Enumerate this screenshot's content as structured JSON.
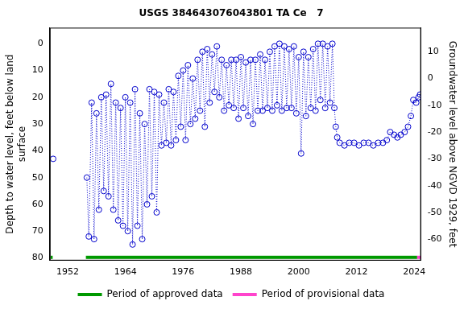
{
  "chart_data": {
    "type": "scatter",
    "title": "USGS 384643076043801 TA Ce   7",
    "y_label": [
      "Depth to water level, feet below land",
      "surface"
    ],
    "y2_label": "Groundwater level above NGVD 1929, feet",
    "xlim": [
      1948.3,
      2025.4
    ],
    "xticks": [
      1952,
      1964,
      1976,
      1988,
      2000,
      2012,
      2024
    ],
    "ylim": [
      81,
      -6
    ],
    "yticks": [
      0,
      10,
      20,
      30,
      40,
      50,
      60,
      70,
      80
    ],
    "y2lim": [
      -68,
      19
    ],
    "y2ticks": [
      10,
      0,
      -10,
      -20,
      -30,
      -40,
      -50,
      -60
    ],
    "grid": false,
    "legend": "bottom",
    "series": [
      {
        "color": "#0000cc",
        "marker": "circle",
        "line_style": "dotted",
        "x": [
          1949.0,
          null,
          1956.0,
          1956.4,
          1957.0,
          1957.5,
          1958.0,
          1958.5,
          1959.0,
          1959.5,
          1960.0,
          1960.5,
          1961.0,
          1961.5,
          1962.0,
          1962.5,
          1963.0,
          1963.5,
          1964.0,
          1964.5,
          1965.0,
          1965.5,
          1966.0,
          1966.5,
          1967.0,
          1967.5,
          1968.0,
          1968.5,
          1969.0,
          1969.5,
          1970.0,
          1970.5,
          1971.0,
          1971.5,
          1972.0,
          1972.5,
          1973.0,
          1973.5,
          1974.0,
          1974.5,
          1975.0,
          1975.5,
          1976.0,
          1976.5,
          1977.0,
          1977.5,
          1978.0,
          1978.5,
          1979.0,
          1979.5,
          1980.0,
          1980.5,
          1981.0,
          1981.5,
          1982.0,
          1982.5,
          1983.0,
          1983.5,
          1984.0,
          1984.5,
          1985.0,
          1985.5,
          1986.0,
          1986.5,
          1987.0,
          1987.5,
          1988.0,
          1988.5,
          1989.0,
          1989.5,
          1990.0,
          1990.5,
          1991.0,
          1991.5,
          1992.0,
          1992.5,
          1993.0,
          1993.5,
          1994.0,
          1994.5,
          1995.0,
          1995.5,
          1996.0,
          1996.5,
          1997.0,
          1997.5,
          1998.0,
          1998.5,
          1999.0,
          1999.5,
          2000.0,
          2000.5,
          2001.0,
          2001.5,
          2002.0,
          2002.5,
          2003.0,
          2003.5,
          2004.0,
          2004.5,
          2005.0,
          2005.5,
          2006.0,
          2006.5,
          2007.0,
          2007.4,
          2007.7,
          2008.0,
          2008.5,
          2009.5,
          2010.5,
          2011.5,
          2012.5,
          2013.5,
          2014.5,
          2015.5,
          2016.5,
          2017.5,
          2018.3,
          2019.0,
          2019.8,
          2020.5,
          2021.2,
          2022.0,
          2022.7,
          2023.3,
          2023.8,
          2024.4,
          2024.9,
          2025.2
        ],
        "values": [
          43,
          null,
          50,
          72,
          22,
          73,
          26,
          62,
          20,
          55,
          19,
          57,
          15,
          62,
          22,
          66,
          24,
          68,
          20,
          70,
          22,
          75,
          17,
          68,
          26,
          73,
          30,
          60,
          17,
          57,
          18,
          63,
          19,
          38,
          22,
          37,
          17,
          38,
          18,
          36,
          12,
          31,
          10,
          36,
          8,
          30,
          13,
          28,
          6,
          25,
          3,
          31,
          2,
          22,
          4,
          18,
          1,
          20,
          6,
          25,
          8,
          23,
          6,
          24,
          6,
          28,
          5,
          24,
          7,
          27,
          6,
          30,
          6,
          25,
          4,
          25,
          6,
          24,
          3,
          25,
          1,
          23,
          0,
          25,
          1,
          24,
          2,
          24,
          1,
          26,
          5,
          41,
          3,
          27,
          5,
          24,
          2,
          25,
          0,
          21,
          0,
          24,
          1,
          22,
          0,
          24,
          31,
          35,
          37,
          38,
          37,
          37,
          38,
          37,
          37,
          38,
          37,
          37,
          36,
          33,
          34,
          35,
          34,
          33,
          31,
          27,
          21,
          22,
          20,
          19
        ]
      }
    ],
    "periods": [
      {
        "name": "Period of approved data",
        "color": "#009900",
        "ranges": [
          [
            1948.5,
            1948.9
          ],
          [
            1955.8,
            2024.6
          ]
        ]
      },
      {
        "name": "Period of provisional data",
        "color": "#ff44cc",
        "ranges": [
          [
            2024.6,
            2025.3
          ]
        ]
      }
    ]
  }
}
